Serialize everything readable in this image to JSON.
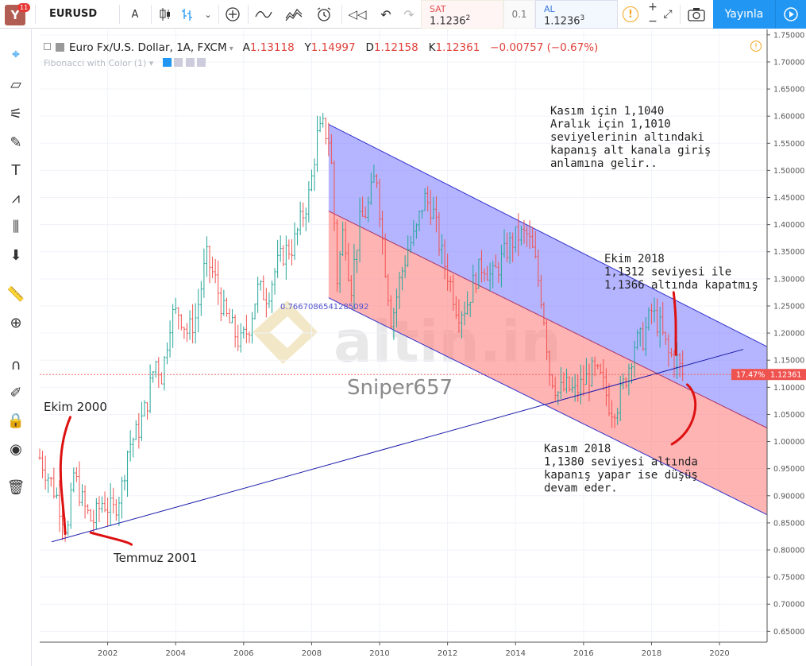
{
  "app": {
    "logo_letter": "Y",
    "notif_count": "11"
  },
  "toolbar": {
    "symbol": "EURUSD",
    "interval": "A",
    "sell_label": "SAT",
    "sell_price": "1.1236",
    "sell_sup": "2",
    "spread": "0.1",
    "buy_label": "AL",
    "buy_price": "1.1236",
    "buy_sup": "3",
    "alert_icon": "!",
    "publish_label": "Yayınla",
    "icons": [
      "candles-icon",
      "bars-icon",
      "chevron-down-icon",
      "add-indicator-icon",
      "compare-icon",
      "indicators-icon",
      "alert-clock-icon",
      "replay-icon",
      "undo-icon",
      "redo-icon",
      "plus-icon",
      "minus-icon",
      "fullscreen-icon",
      "camera-icon",
      "play-icon"
    ]
  },
  "legend": {
    "title": "Euro Fx/U.S. Dollar, 1A, FXCM",
    "open_label": "A",
    "open": "1.13118",
    "high_label": "Y",
    "high": "1.14997",
    "low_label": "D",
    "low": "1.12158",
    "close_label": "K",
    "close": "1.12361",
    "change": "−0.00757 (−0.67%)",
    "indicator": "Fibonacci with Color (1)"
  },
  "sidebar_tools": [
    "crosshair-icon",
    "trendline-icon",
    "pitchfork-icon",
    "brush-icon",
    "text-icon",
    "pattern-icon",
    "measure-icon",
    "arrow-down-icon",
    "ruler-icon",
    "zoom-icon",
    "magnet-icon",
    "lock-drawing-icon",
    "lock-icon",
    "eye-icon",
    "trash-icon"
  ],
  "annotations": {
    "ekim2000": "Ekim 2000",
    "temmuz2001": "Temmuz 2001",
    "top_note": [
      "Kasım için 1,1040",
      "Aralık için 1,1010",
      "seviyelerinin altındaki",
      "kapanış alt kanala giriş",
      "anlamına gelir.."
    ],
    "ekim2018": [
      "Ekim 2018",
      "1,1312 seviyesi ile",
      "1,1366 altında kapatmış"
    ],
    "kasim2018": [
      "Kasım 2018",
      "1,1380 seviyesi altında",
      "kapanış yapar ise düşüş",
      "devam eder."
    ],
    "fib_label": "0.7667086541285092",
    "watermark_brand": "altin.in",
    "author": "Sniper657"
  },
  "price_badge": {
    "pct": "17.47%",
    "price": "1.12361",
    "color": "#ef5350"
  },
  "colors": {
    "up": "#26a69a",
    "down": "#ef5350",
    "upper_channel": "#7878ff",
    "lower_channel": "#ff8a8a",
    "trendline": "#1a1aaa",
    "annotation_red": "#dd1111",
    "accent": "#2196f3"
  },
  "chart_data": {
    "type": "ohlc",
    "symbol": "EURUSD",
    "interval": "1 month",
    "x_ticks": [
      "2002",
      "2004",
      "2006",
      "2008",
      "2010",
      "2012",
      "2014",
      "2016",
      "2018",
      "2020"
    ],
    "y_ticks": [
      "1.75000",
      "1.70000",
      "1.65000",
      "1.60000",
      "1.55000",
      "1.50000",
      "1.45000",
      "1.40000",
      "1.35000",
      "1.30000",
      "1.25000",
      "1.20000",
      "1.15000",
      "1.10000",
      "1.05000",
      "1.00000",
      "0.95000",
      "0.90000",
      "0.85000",
      "0.80000",
      "0.75000",
      "0.70000",
      "0.65000"
    ],
    "ylim": [
      0.63,
      1.76
    ],
    "xlim": [
      2000.0,
      2021.4
    ],
    "last_close": 1.12361,
    "series": [
      [
        2000.0,
        0.97
      ],
      [
        2000.3,
        0.93
      ],
      [
        2000.55,
        0.89
      ],
      [
        2000.82,
        0.83
      ],
      [
        2001.0,
        0.94
      ],
      [
        2001.3,
        0.88
      ],
      [
        2001.55,
        0.85
      ],
      [
        2001.85,
        0.89
      ],
      [
        2002.15,
        0.87
      ],
      [
        2002.4,
        0.91
      ],
      [
        2002.6,
        0.99
      ],
      [
        2002.9,
        1.02
      ],
      [
        2003.15,
        1.07
      ],
      [
        2003.4,
        1.15
      ],
      [
        2003.6,
        1.12
      ],
      [
        2003.85,
        1.23
      ],
      [
        2004.1,
        1.24
      ],
      [
        2004.35,
        1.2
      ],
      [
        2004.6,
        1.23
      ],
      [
        2004.9,
        1.34
      ],
      [
        2005.15,
        1.3
      ],
      [
        2005.4,
        1.24
      ],
      [
        2005.65,
        1.21
      ],
      [
        2005.9,
        1.18
      ],
      [
        2006.15,
        1.21
      ],
      [
        2006.4,
        1.28
      ],
      [
        2006.7,
        1.27
      ],
      [
        2006.95,
        1.32
      ],
      [
        2007.2,
        1.35
      ],
      [
        2007.45,
        1.36
      ],
      [
        2007.7,
        1.41
      ],
      [
        2007.95,
        1.46
      ],
      [
        2008.15,
        1.56
      ],
      [
        2008.35,
        1.58
      ],
      [
        2008.55,
        1.55
      ],
      [
        2008.75,
        1.3
      ],
      [
        2008.95,
        1.4
      ],
      [
        2009.15,
        1.28
      ],
      [
        2009.4,
        1.4
      ],
      [
        2009.65,
        1.43
      ],
      [
        2009.9,
        1.5
      ],
      [
        2010.1,
        1.36
      ],
      [
        2010.35,
        1.22
      ],
      [
        2010.6,
        1.3
      ],
      [
        2010.85,
        1.36
      ],
      [
        2011.05,
        1.38
      ],
      [
        2011.3,
        1.45
      ],
      [
        2011.55,
        1.43
      ],
      [
        2011.8,
        1.35
      ],
      [
        2012.0,
        1.31
      ],
      [
        2012.3,
        1.24
      ],
      [
        2012.55,
        1.25
      ],
      [
        2012.8,
        1.3
      ],
      [
        2013.05,
        1.33
      ],
      [
        2013.3,
        1.3
      ],
      [
        2013.55,
        1.33
      ],
      [
        2013.8,
        1.36
      ],
      [
        2014.05,
        1.38
      ],
      [
        2014.35,
        1.38
      ],
      [
        2014.55,
        1.34
      ],
      [
        2014.8,
        1.25
      ],
      [
        2015.0,
        1.13
      ],
      [
        2015.25,
        1.09
      ],
      [
        2015.5,
        1.1
      ],
      [
        2015.75,
        1.09
      ],
      [
        2016.0,
        1.11
      ],
      [
        2016.3,
        1.13
      ],
      [
        2016.55,
        1.11
      ],
      [
        2016.8,
        1.06
      ],
      [
        2017.0,
        1.07
      ],
      [
        2017.25,
        1.12
      ],
      [
        2017.5,
        1.18
      ],
      [
        2017.75,
        1.19
      ],
      [
        2018.0,
        1.24
      ],
      [
        2018.25,
        1.21
      ],
      [
        2018.5,
        1.16
      ],
      [
        2018.75,
        1.15
      ],
      [
        2018.9,
        1.124
      ]
    ]
  }
}
